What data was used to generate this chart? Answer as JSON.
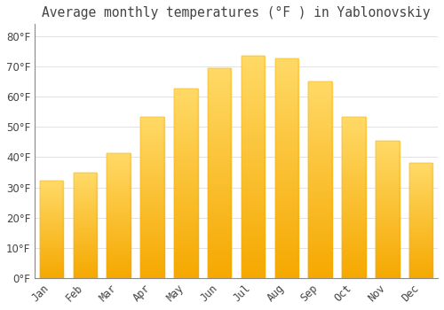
{
  "title": "Average monthly temperatures (°F ) in Yablonovskiy",
  "months": [
    "Jan",
    "Feb",
    "Mar",
    "Apr",
    "May",
    "Jun",
    "Jul",
    "Aug",
    "Sep",
    "Oct",
    "Nov",
    "Dec"
  ],
  "values": [
    32.2,
    34.7,
    41.4,
    53.4,
    62.6,
    69.4,
    73.4,
    72.7,
    65.0,
    53.4,
    45.3,
    38.0
  ],
  "bar_color_top": "#FFD966",
  "bar_color_bottom": "#F5A800",
  "background_color": "#FFFFFF",
  "grid_color": "#DDDDDD",
  "text_color": "#444444",
  "title_fontsize": 10.5,
  "tick_fontsize": 8.5,
  "ylim": [
    0,
    84
  ],
  "yticks": [
    0,
    10,
    20,
    30,
    40,
    50,
    60,
    70,
    80
  ]
}
